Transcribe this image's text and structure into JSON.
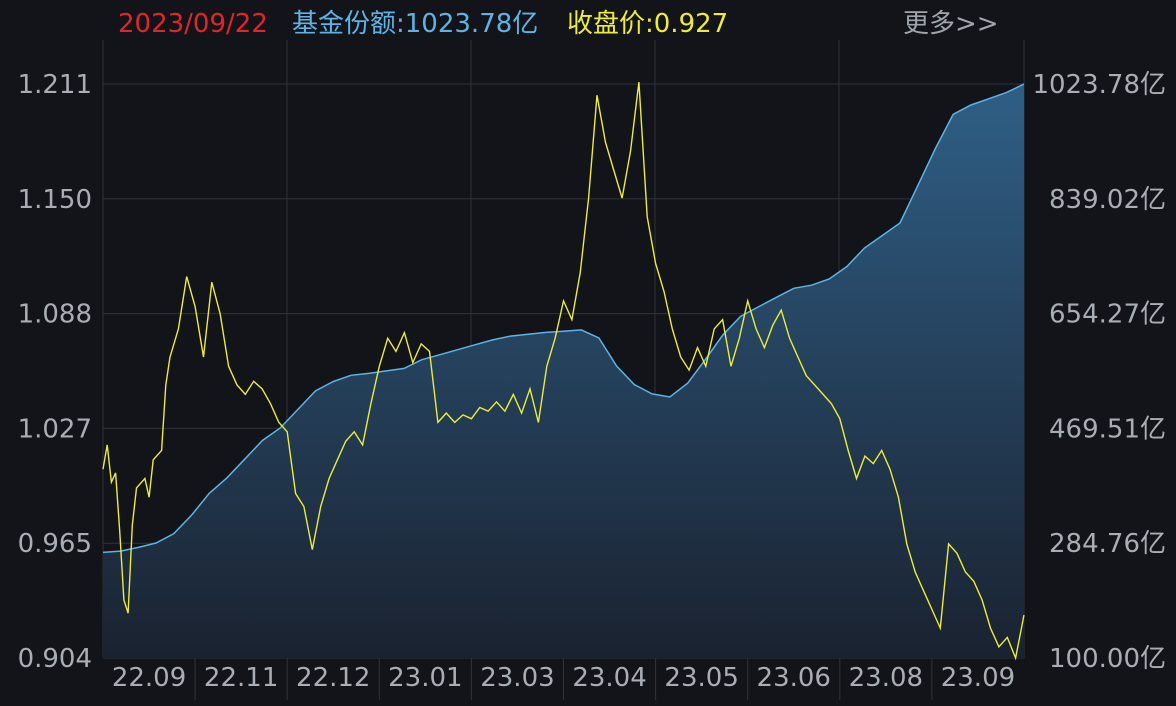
{
  "header": {
    "date": "2023/09/22",
    "fund_share": "基金份额:1023.78亿",
    "close_price": "收盘价:0.927",
    "more": "更多>>"
  },
  "colors": {
    "background": "#121419",
    "grid": "#2f333b",
    "date": "#e0252b",
    "share_line": "#5db4e4",
    "price_line": "#ecec3a",
    "area_top": "#2f5f86",
    "area_bottom": "#1a2230",
    "tick_text": "#a9adb5"
  },
  "chart_data": {
    "type": "line",
    "x_ticks": [
      "22.09",
      "22.11",
      "22.12",
      "23.01",
      "23.03",
      "23.04",
      "23.05",
      "23.06",
      "23.08",
      "23.09"
    ],
    "left_axis": {
      "labels": [
        "1.211",
        "1.150",
        "1.088",
        "1.027",
        "0.965",
        "0.904"
      ],
      "range": [
        0.904,
        1.211
      ]
    },
    "right_axis": {
      "labels": [
        "1023.78亿",
        "839.02亿",
        "654.27亿",
        "469.51亿",
        "284.76亿",
        "100.00亿"
      ],
      "range": [
        100.0,
        1023.78
      ]
    },
    "grid": true,
    "series": [
      {
        "kind": "area",
        "axis": "right",
        "points": [
          [
            0,
            270
          ],
          [
            2,
            272
          ],
          [
            4,
            278
          ],
          [
            6,
            285
          ],
          [
            8,
            300
          ],
          [
            10,
            330
          ],
          [
            12,
            365
          ],
          [
            14,
            390
          ],
          [
            16,
            420
          ],
          [
            18,
            450
          ],
          [
            20,
            470
          ],
          [
            22,
            500
          ],
          [
            24,
            530
          ],
          [
            26,
            545
          ],
          [
            28,
            555
          ],
          [
            30,
            558
          ],
          [
            32,
            562
          ],
          [
            34,
            566
          ],
          [
            36,
            580
          ],
          [
            38,
            588
          ],
          [
            40,
            596
          ],
          [
            42,
            604
          ],
          [
            44,
            612
          ],
          [
            46,
            618
          ],
          [
            48,
            621
          ],
          [
            50,
            624
          ],
          [
            52,
            626
          ],
          [
            54,
            628
          ],
          [
            56,
            615
          ],
          [
            58,
            570
          ],
          [
            60,
            540
          ],
          [
            62,
            525
          ],
          [
            64,
            520
          ],
          [
            66,
            542
          ],
          [
            68,
            580
          ],
          [
            70,
            620
          ],
          [
            72,
            650
          ],
          [
            74,
            665
          ],
          [
            76,
            680
          ],
          [
            78,
            695
          ],
          [
            80,
            700
          ],
          [
            82,
            710
          ],
          [
            84,
            730
          ],
          [
            86,
            760
          ],
          [
            88,
            780
          ],
          [
            90,
            800
          ],
          [
            92,
            860
          ],
          [
            94,
            920
          ],
          [
            96,
            975
          ],
          [
            98,
            990
          ],
          [
            100,
            1000
          ],
          [
            102,
            1010
          ],
          [
            104,
            1023.78
          ]
        ]
      },
      {
        "kind": "line",
        "axis": "left",
        "points": [
          [
            0,
            1.005
          ],
          [
            0.5,
            1.018
          ],
          [
            1,
            0.998
          ],
          [
            1.5,
            1.003
          ],
          [
            2,
            0.972
          ],
          [
            2.5,
            0.935
          ],
          [
            3,
            0.928
          ],
          [
            3.5,
            0.975
          ],
          [
            4,
            0.995
          ],
          [
            5,
            1.0
          ],
          [
            5.5,
            0.99
          ],
          [
            6,
            1.01
          ],
          [
            7,
            1.015
          ],
          [
            7.5,
            1.05
          ],
          [
            8,
            1.065
          ],
          [
            9,
            1.08
          ],
          [
            10,
            1.108
          ],
          [
            11,
            1.092
          ],
          [
            12,
            1.065
          ],
          [
            13,
            1.105
          ],
          [
            14,
            1.088
          ],
          [
            15,
            1.06
          ],
          [
            16,
            1.05
          ],
          [
            17,
            1.045
          ],
          [
            18,
            1.052
          ],
          [
            19,
            1.048
          ],
          [
            20,
            1.04
          ],
          [
            21,
            1.03
          ],
          [
            22,
            1.025
          ],
          [
            23,
            0.992
          ],
          [
            24,
            0.985
          ],
          [
            25,
            0.962
          ],
          [
            26,
            0.985
          ],
          [
            27,
            1.0
          ],
          [
            28,
            1.01
          ],
          [
            29,
            1.02
          ],
          [
            30,
            1.025
          ],
          [
            31,
            1.018
          ],
          [
            32,
            1.04
          ],
          [
            33,
            1.06
          ],
          [
            34,
            1.075
          ],
          [
            35,
            1.068
          ],
          [
            36,
            1.078
          ],
          [
            37,
            1.062
          ],
          [
            38,
            1.072
          ],
          [
            39,
            1.068
          ],
          [
            40,
            1.03
          ],
          [
            41,
            1.035
          ],
          [
            42,
            1.03
          ],
          [
            43,
            1.034
          ],
          [
            44,
            1.032
          ],
          [
            45,
            1.038
          ],
          [
            46,
            1.036
          ],
          [
            47,
            1.041
          ],
          [
            48,
            1.036
          ],
          [
            49,
            1.045
          ],
          [
            50,
            1.035
          ],
          [
            51,
            1.048
          ],
          [
            52,
            1.03
          ],
          [
            53,
            1.06
          ],
          [
            54,
            1.075
          ],
          [
            55,
            1.095
          ],
          [
            56,
            1.085
          ],
          [
            57,
            1.11
          ],
          [
            58,
            1.15
          ],
          [
            59,
            1.205
          ],
          [
            60,
            1.18
          ],
          [
            61,
            1.165
          ],
          [
            62,
            1.15
          ],
          [
            63,
            1.175
          ],
          [
            64,
            1.212
          ],
          [
            65,
            1.14
          ],
          [
            66,
            1.115
          ],
          [
            67,
            1.1
          ],
          [
            68,
            1.08
          ],
          [
            69,
            1.065
          ],
          [
            70,
            1.058
          ],
          [
            71,
            1.07
          ],
          [
            72,
            1.06
          ],
          [
            73,
            1.08
          ],
          [
            74,
            1.085
          ],
          [
            75,
            1.06
          ],
          [
            76,
            1.075
          ],
          [
            77,
            1.095
          ],
          [
            78,
            1.08
          ],
          [
            79,
            1.07
          ],
          [
            80,
            1.082
          ],
          [
            81,
            1.09
          ],
          [
            82,
            1.075
          ],
          [
            83,
            1.065
          ],
          [
            84,
            1.055
          ],
          [
            85,
            1.05
          ],
          [
            86,
            1.045
          ],
          [
            87,
            1.04
          ],
          [
            88,
            1.032
          ],
          [
            89,
            1.015
          ],
          [
            90,
            1.0
          ],
          [
            91,
            1.012
          ],
          [
            92,
            1.008
          ],
          [
            93,
            1.015
          ],
          [
            94,
            1.005
          ],
          [
            95,
            0.99
          ],
          [
            96,
            0.965
          ],
          [
            97,
            0.95
          ],
          [
            98,
            0.94
          ],
          [
            99,
            0.93
          ],
          [
            100,
            0.92
          ],
          [
            101,
            0.965
          ],
          [
            102,
            0.96
          ],
          [
            103,
            0.95
          ],
          [
            104,
            0.945
          ],
          [
            105,
            0.935
          ],
          [
            106,
            0.92
          ],
          [
            107,
            0.91
          ],
          [
            108,
            0.915
          ],
          [
            109,
            0.904
          ],
          [
            110,
            0.927
          ]
        ]
      }
    ]
  }
}
